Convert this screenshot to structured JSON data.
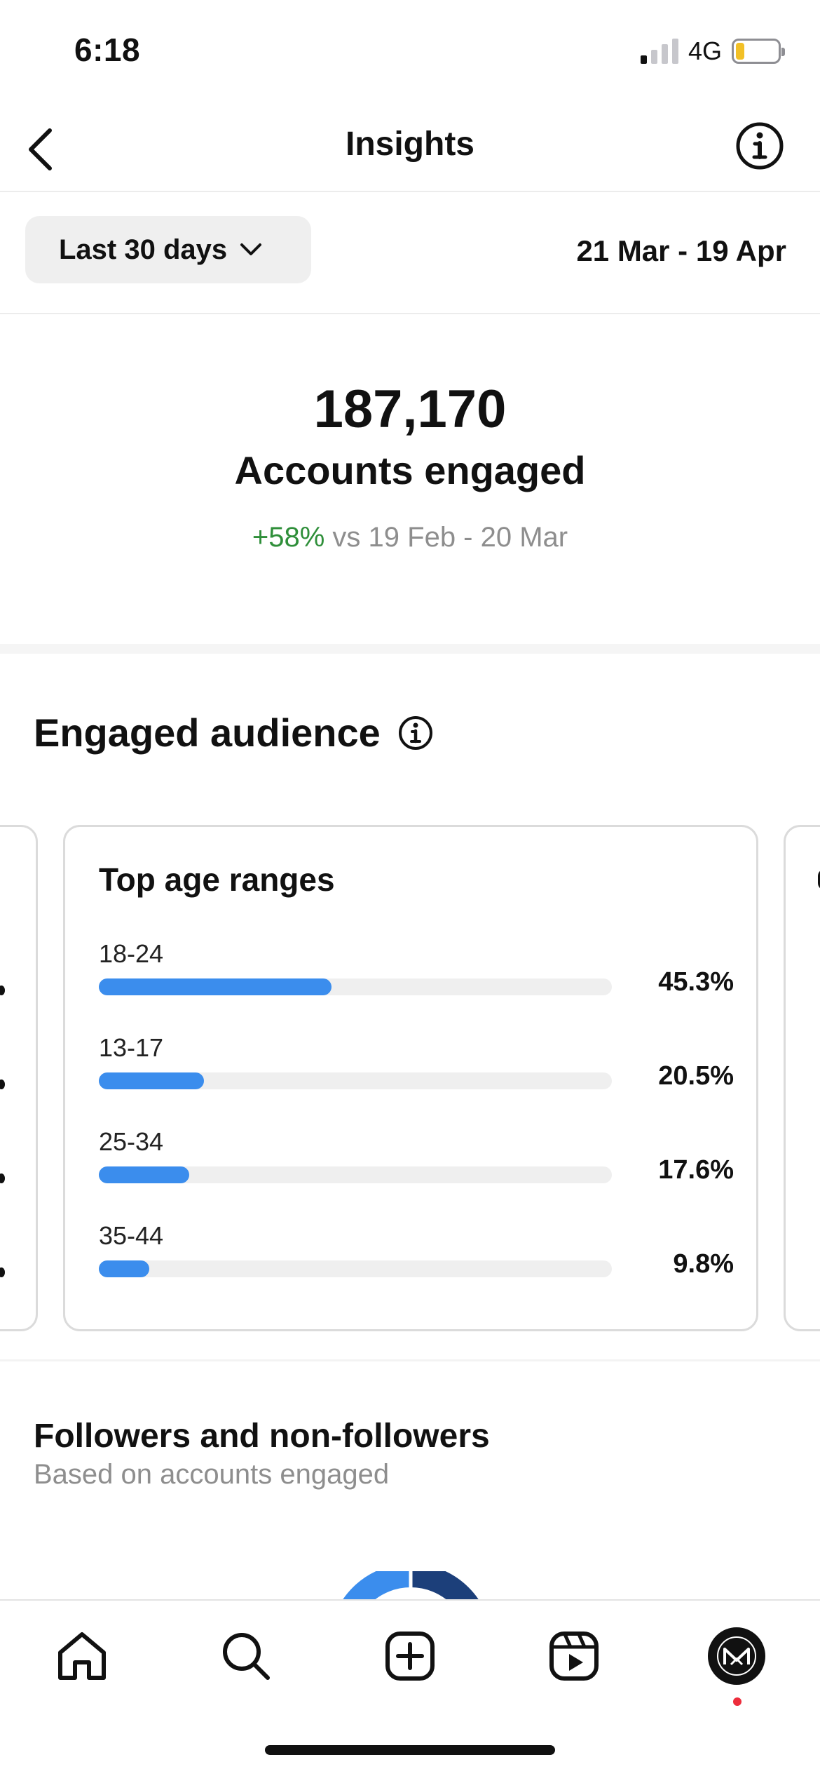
{
  "status_bar": {
    "time": "6:18",
    "network": "4G",
    "signal_bars_active": 1,
    "battery_level": 0.2
  },
  "header": {
    "title": "Insights",
    "back_icon": "chevron-left-icon",
    "info_icon": "info-circle-icon"
  },
  "filter": {
    "period_label": "Last 30 days",
    "date_range": "21 Mar - 19 Apr"
  },
  "summary": {
    "value": "187,170",
    "label": "Accounts engaged",
    "change": "+58%",
    "compare_text": " vs 19 Feb - 20 Mar"
  },
  "engaged_audience": {
    "title": "Engaged audience",
    "card_title": "Top age ranges",
    "age_ranges": [
      {
        "label": "18-24",
        "percent": "45.3%",
        "value": 45.3
      },
      {
        "label": "13-17",
        "percent": "20.5%",
        "value": 20.5
      },
      {
        "label": "25-34",
        "percent": "17.6%",
        "value": 17.6
      },
      {
        "label": "35-44",
        "percent": "9.8%",
        "value": 9.8
      }
    ]
  },
  "followers": {
    "title": "Followers and non-followers",
    "subtitle": "Based on accounts engaged"
  },
  "tab_bar": {
    "items": [
      "home-icon",
      "search-icon",
      "create-icon",
      "reels-icon",
      "profile-avatar"
    ]
  },
  "colors": {
    "accent_bar": "#3b8ded",
    "positive": "#2f8f3a",
    "donut_light": "#3b8ded",
    "donut_dark": "#1c3f7a"
  }
}
